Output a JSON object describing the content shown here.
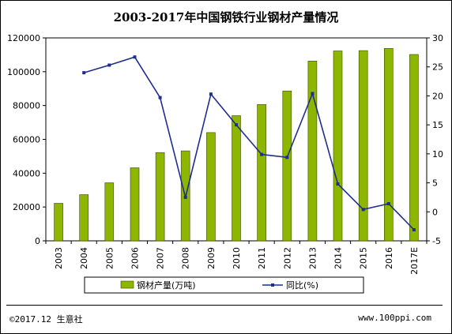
{
  "chart_data": {
    "type": "bar",
    "title": "2003-2017年中国钢铁行业钢材产量情况",
    "categories": [
      "2003",
      "2004",
      "2005",
      "2006",
      "2007",
      "2008",
      "2009",
      "2010",
      "2011",
      "2012",
      "2013",
      "2014",
      "2015",
      "2016",
      "2017E"
    ],
    "series": [
      {
        "name": "钢材产量(万吨)",
        "type": "bar",
        "axis": "left",
        "color": "#8DB600",
        "values": [
          22200,
          27300,
          34300,
          43200,
          52200,
          53200,
          64000,
          74000,
          80600,
          88600,
          106300,
          112300,
          112500,
          113800,
          110200
        ]
      },
      {
        "name": "同比(%)",
        "type": "line",
        "axis": "right",
        "color": "#1F2E8C",
        "values": [
          null,
          24.0,
          25.3,
          26.7,
          19.7,
          2.5,
          20.3,
          15.0,
          9.9,
          9.4,
          20.4,
          4.8,
          0.4,
          1.4,
          -3.1
        ]
      }
    ],
    "y_left": {
      "min": 0,
      "max": 120000,
      "ticks": [
        0,
        20000,
        40000,
        60000,
        80000,
        100000,
        120000
      ]
    },
    "y_right": {
      "min": -5,
      "max": 30,
      "ticks": [
        -5,
        0,
        5,
        10,
        15,
        20,
        25,
        30
      ]
    },
    "grid": false,
    "legend_position": "bottom"
  },
  "footer": {
    "left": "©2017.12 生意社",
    "right": "www.100ppi.com"
  }
}
